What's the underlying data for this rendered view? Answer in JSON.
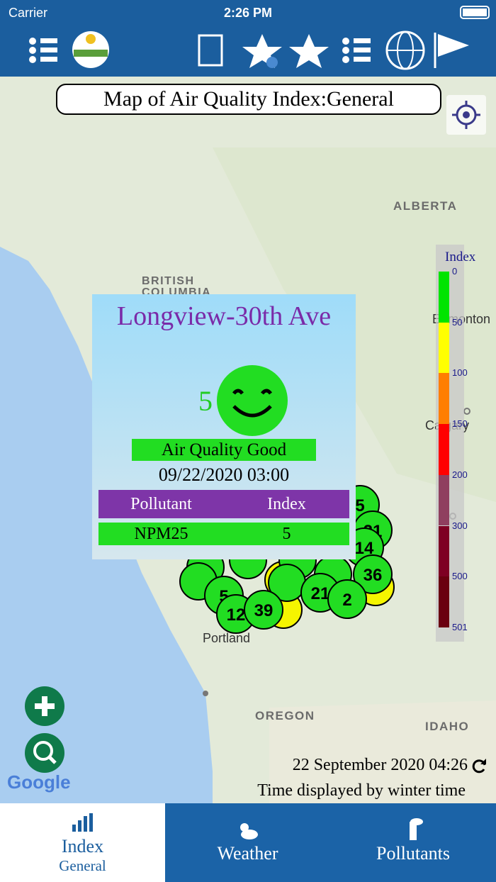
{
  "status_bar": {
    "carrier": "Carrier",
    "time": "2:26 PM"
  },
  "map_title": "Map of Air Quality Index:General",
  "map_labels": {
    "alberta": "ALBERTA",
    "british_columbia": "BRITISH COLUMBIA",
    "edmonton": "Edmonton",
    "calgary": "Calgary",
    "portland": "Portland",
    "oregon": "OREGON",
    "idaho": "IDAHO",
    "google": "Google"
  },
  "legend": {
    "title": "Index",
    "ticks": [
      0,
      50,
      100,
      150,
      200,
      300,
      500,
      501
    ]
  },
  "markers": [
    5,
    21,
    14,
    36,
    21,
    2,
    5,
    12,
    39
  ],
  "popup": {
    "station": "Longview-30th Ave",
    "value": 5,
    "category": "Air Quality Good",
    "datetime": "09/22/2020 03:00",
    "table": {
      "header": [
        "Pollutant",
        "Index"
      ],
      "rows": [
        [
          "NPM25",
          5
        ]
      ]
    }
  },
  "footer": {
    "date": "22 September 2020 04:26",
    "note": "Time displayed by winter time"
  },
  "tabs": [
    {
      "label": "Index",
      "sublabel": "General"
    },
    {
      "label": "Weather"
    },
    {
      "label": "Pollutants"
    }
  ]
}
